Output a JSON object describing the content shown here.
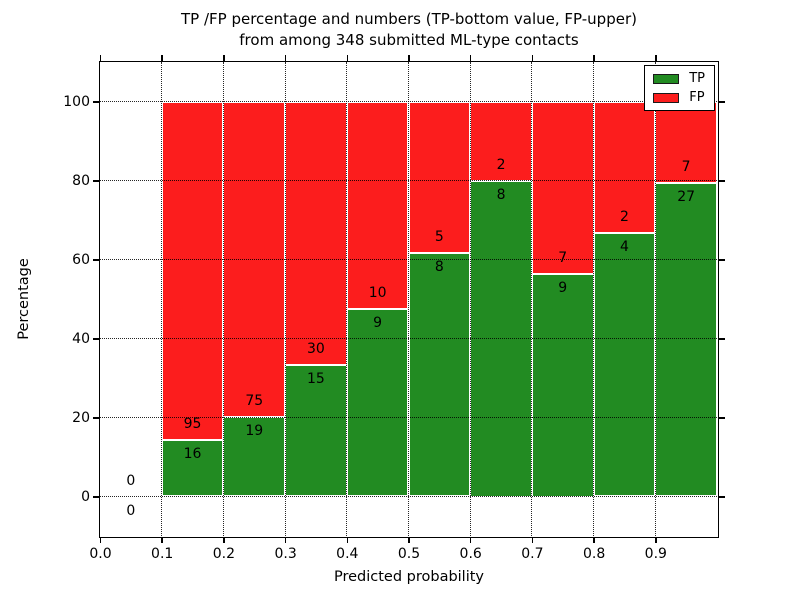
{
  "chart_data": {
    "type": "bar",
    "stacked": true,
    "title": "TP /FP percentage and numbers (TP-bottom value, FP-upper)\nfrom among 348 submitted ML-type contacts",
    "title_lines": [
      "TP /FP percentage and numbers (TP-bottom value, FP-upper)",
      "from among 348 submitted ML-type contacts"
    ],
    "xlabel": "Predicted probability",
    "ylabel": "Percentage",
    "xlim": [
      0.0,
      1.0
    ],
    "ylim": [
      -10,
      110
    ],
    "x_tick_values": [
      0.0,
      0.1,
      0.2,
      0.3,
      0.4,
      0.5,
      0.6,
      0.7,
      0.8,
      0.9
    ],
    "x_tick_labels": [
      "0.0",
      "0.1",
      "0.2",
      "0.3",
      "0.4",
      "0.5",
      "0.6",
      "0.7",
      "0.8",
      "0.9"
    ],
    "y_tick_values": [
      0,
      20,
      40,
      60,
      80,
      100
    ],
    "y_tick_labels": [
      "0",
      "20",
      "40",
      "60",
      "80",
      "100"
    ],
    "grid": true,
    "legend": {
      "position": "upper right",
      "entries": [
        {
          "label": "TP",
          "color": "#228b22"
        },
        {
          "label": "FP",
          "color": "#fc1d1d"
        }
      ]
    },
    "colors": {
      "tp": "#228b22",
      "fp": "#fc1d1d"
    },
    "bins": [
      {
        "x0": 0.0,
        "x1": 0.1,
        "tp": 0,
        "fp": 0
      },
      {
        "x0": 0.1,
        "x1": 0.2,
        "tp": 16,
        "fp": 95
      },
      {
        "x0": 0.2,
        "x1": 0.3,
        "tp": 19,
        "fp": 75
      },
      {
        "x0": 0.3,
        "x1": 0.4,
        "tp": 15,
        "fp": 30
      },
      {
        "x0": 0.4,
        "x1": 0.5,
        "tp": 9,
        "fp": 10
      },
      {
        "x0": 0.5,
        "x1": 0.6,
        "tp": 8,
        "fp": 5
      },
      {
        "x0": 0.6,
        "x1": 0.7,
        "tp": 8,
        "fp": 2
      },
      {
        "x0": 0.7,
        "x1": 0.8,
        "tp": 9,
        "fp": 7
      },
      {
        "x0": 0.8,
        "x1": 0.9,
        "tp": 4,
        "fp": 2
      },
      {
        "x0": 0.9,
        "x1": 1.0,
        "tp": 27,
        "fp": 7
      }
    ]
  }
}
